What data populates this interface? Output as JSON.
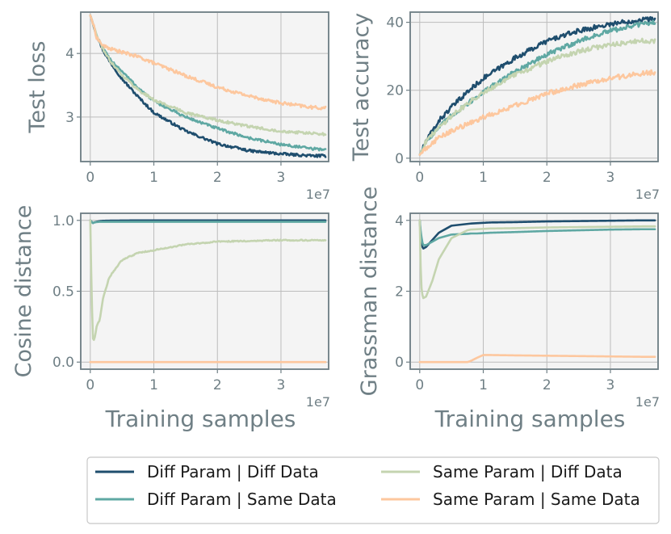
{
  "colors": {
    "diff_param_diff_data": "#1f4e6e",
    "diff_param_same_data": "#5fa8a3",
    "same_param_diff_data": "#c4d4b0",
    "same_param_same_data": "#fdc79e"
  },
  "legend": {
    "entries": [
      {
        "label": "Diff Param | Diff Data",
        "color_key": "diff_param_diff_data"
      },
      {
        "label": "Same Param | Diff Data",
        "color_key": "same_param_diff_data"
      },
      {
        "label": "Diff Param | Same Data",
        "color_key": "diff_param_same_data"
      },
      {
        "label": "Same Param | Same Data",
        "color_key": "same_param_same_data"
      }
    ]
  },
  "chart_data": [
    {
      "type": "line",
      "ylabel": "Test loss",
      "xlabel": "",
      "x_offset_label": "1e7",
      "xlim": [
        -0.15,
        3.75
      ],
      "ylim": [
        2.3,
        4.65
      ],
      "xticks": [
        0,
        1,
        2,
        3
      ],
      "xtick_labels": [
        "0",
        "1",
        "2",
        "3"
      ],
      "yticks": [
        3,
        4
      ],
      "ytick_labels": [
        "3",
        "4"
      ],
      "x": [
        0,
        0.05,
        0.1,
        0.2,
        0.3,
        0.5,
        0.75,
        1.0,
        1.5,
        2.0,
        2.5,
        3.0,
        3.5,
        3.7
      ],
      "series": [
        {
          "name": "Diff Param | Diff Data",
          "color_key": "diff_param_diff_data",
          "noise": 0.02,
          "values": [
            4.6,
            4.45,
            4.28,
            4.05,
            3.88,
            3.6,
            3.32,
            3.07,
            2.78,
            2.58,
            2.47,
            2.42,
            2.39,
            2.39
          ]
        },
        {
          "name": "Diff Param | Same Data",
          "color_key": "diff_param_same_data",
          "noise": 0.02,
          "values": [
            4.6,
            4.45,
            4.28,
            4.08,
            3.92,
            3.72,
            3.46,
            3.25,
            3.0,
            2.82,
            2.67,
            2.57,
            2.5,
            2.49
          ]
        },
        {
          "name": "Same Param | Diff Data",
          "color_key": "same_param_diff_data",
          "noise": 0.02,
          "values": [
            4.6,
            4.45,
            4.28,
            4.07,
            3.9,
            3.66,
            3.43,
            3.27,
            3.07,
            2.95,
            2.85,
            2.78,
            2.74,
            2.73
          ]
        },
        {
          "name": "Same Param | Same Data",
          "color_key": "same_param_same_data",
          "noise": 0.025,
          "values": [
            4.6,
            4.45,
            4.25,
            4.12,
            4.08,
            4.02,
            3.95,
            3.85,
            3.65,
            3.47,
            3.33,
            3.22,
            3.15,
            3.14
          ]
        }
      ]
    },
    {
      "type": "line",
      "ylabel": "Test accuracy",
      "xlabel": "",
      "x_offset_label": "1e7",
      "xlim": [
        -0.15,
        3.75
      ],
      "ylim": [
        -1,
        43
      ],
      "xticks": [
        0,
        1,
        2,
        3
      ],
      "xtick_labels": [
        "0",
        "1",
        "2",
        "3"
      ],
      "yticks": [
        0,
        20,
        40
      ],
      "ytick_labels": [
        "0",
        "20",
        "40"
      ],
      "x": [
        0,
        0.05,
        0.1,
        0.2,
        0.3,
        0.5,
        0.75,
        1.0,
        1.5,
        2.0,
        2.5,
        3.0,
        3.5,
        3.7
      ],
      "series": [
        {
          "name": "Diff Param | Diff Data",
          "color_key": "diff_param_diff_data",
          "noise": 0.7,
          "values": [
            1,
            3,
            5,
            8,
            11,
            15,
            19.5,
            23.5,
            29.5,
            34.5,
            37.5,
            39.5,
            40.8,
            41
          ]
        },
        {
          "name": "Diff Param | Same Data",
          "color_key": "diff_param_same_data",
          "noise": 0.7,
          "values": [
            1,
            3,
            5,
            7,
            9,
            12.5,
            16,
            19.5,
            25.5,
            30.5,
            34.5,
            37.5,
            39.5,
            40
          ]
        },
        {
          "name": "Same Param | Diff Data",
          "color_key": "same_param_diff_data",
          "noise": 0.7,
          "values": [
            1,
            3,
            5,
            7,
            9,
            12.5,
            16,
            19.5,
            24.5,
            28.5,
            31.5,
            33.5,
            34.5,
            34.5
          ]
        },
        {
          "name": "Same Param | Same Data",
          "color_key": "same_param_same_data",
          "noise": 0.7,
          "values": [
            1,
            2,
            3,
            4.5,
            6,
            8,
            10,
            12,
            15.5,
            19,
            21.5,
            23.5,
            25,
            25.3
          ]
        }
      ]
    },
    {
      "type": "line",
      "ylabel": "Cosine distance",
      "xlabel": "Training samples",
      "x_offset_label": "1e7",
      "xlim": [
        -0.15,
        3.75
      ],
      "ylim": [
        -0.05,
        1.05
      ],
      "xticks": [
        0,
        1,
        2,
        3
      ],
      "xtick_labels": [
        "0",
        "1",
        "2",
        "3"
      ],
      "yticks": [
        0,
        0.5,
        1.0
      ],
      "ytick_labels": [
        "0.0",
        "0.5",
        "1.0"
      ],
      "x": [
        0,
        0.02,
        0.04,
        0.06,
        0.1,
        0.15,
        0.2,
        0.3,
        0.5,
        0.75,
        1.0,
        1.5,
        2.0,
        2.5,
        3.0,
        3.5,
        3.7
      ],
      "series": [
        {
          "name": "Diff Param | Diff Data",
          "color_key": "diff_param_diff_data",
          "noise": 0,
          "values": [
            1.0,
            0.99,
            0.98,
            0.985,
            0.99,
            0.995,
            0.997,
            0.998,
            0.999,
            1.0,
            1.0,
            1.0,
            1.0,
            1.0,
            1.0,
            1.0,
            1.0
          ]
        },
        {
          "name": "Diff Param | Same Data",
          "color_key": "diff_param_same_data",
          "noise": 0,
          "values": [
            1.0,
            0.99,
            0.98,
            0.985,
            0.988,
            0.99,
            0.99,
            0.99,
            0.99,
            0.99,
            0.99,
            0.99,
            0.99,
            0.99,
            0.99,
            0.99,
            0.99
          ]
        },
        {
          "name": "Same Param | Diff Data",
          "color_key": "same_param_diff_data",
          "noise": 0.004,
          "values": [
            1.0,
            0.5,
            0.17,
            0.15,
            0.25,
            0.3,
            0.45,
            0.6,
            0.72,
            0.77,
            0.79,
            0.83,
            0.85,
            0.855,
            0.86,
            0.86,
            0.86
          ]
        },
        {
          "name": "Same Param | Same Data",
          "color_key": "same_param_same_data",
          "noise": 0,
          "values": [
            0,
            0,
            0,
            0,
            0,
            0,
            0,
            0,
            0,
            0,
            0,
            0,
            0,
            0,
            0,
            0,
            0
          ]
        }
      ]
    },
    {
      "type": "line",
      "ylabel": "Grassman distance",
      "xlabel": "Training samples",
      "x_offset_label": "1e7",
      "xlim": [
        -0.15,
        3.75
      ],
      "ylim": [
        -0.2,
        4.2
      ],
      "xticks": [
        0,
        1,
        2,
        3
      ],
      "xtick_labels": [
        "0",
        "1",
        "2",
        "3"
      ],
      "yticks": [
        0,
        2,
        4
      ],
      "ytick_labels": [
        "0",
        "2",
        "4"
      ],
      "x": [
        0,
        0.02,
        0.05,
        0.1,
        0.2,
        0.3,
        0.5,
        0.75,
        0.8,
        0.9,
        1.0,
        1.1,
        1.5,
        2.0,
        2.5,
        3.0,
        3.5,
        3.7
      ],
      "series": [
        {
          "name": "Diff Param | Diff Data",
          "color_key": "diff_param_diff_data",
          "noise": 0,
          "values": [
            4.0,
            3.4,
            3.2,
            3.25,
            3.45,
            3.65,
            3.85,
            3.9,
            3.91,
            3.92,
            3.93,
            3.94,
            3.95,
            3.97,
            3.98,
            3.99,
            4.0,
            4.0
          ]
        },
        {
          "name": "Diff Param | Same Data",
          "color_key": "diff_param_same_data",
          "noise": 0,
          "values": [
            4.0,
            3.6,
            3.3,
            3.3,
            3.4,
            3.5,
            3.6,
            3.62,
            3.63,
            3.63,
            3.64,
            3.65,
            3.67,
            3.7,
            3.72,
            3.74,
            3.75,
            3.75
          ]
        },
        {
          "name": "Same Param | Diff Data",
          "color_key": "same_param_diff_data",
          "noise": 0,
          "values": [
            4.0,
            2.2,
            1.8,
            1.85,
            2.3,
            2.9,
            3.5,
            3.72,
            3.74,
            3.75,
            3.76,
            3.77,
            3.78,
            3.8,
            3.81,
            3.82,
            3.83,
            3.83
          ]
        },
        {
          "name": "Same Param | Same Data",
          "color_key": "same_param_same_data",
          "noise": 0,
          "values": [
            0,
            0,
            0,
            0,
            0,
            0,
            0,
            0,
            0.03,
            0.12,
            0.2,
            0.2,
            0.19,
            0.18,
            0.17,
            0.16,
            0.15,
            0.15
          ]
        }
      ]
    }
  ]
}
